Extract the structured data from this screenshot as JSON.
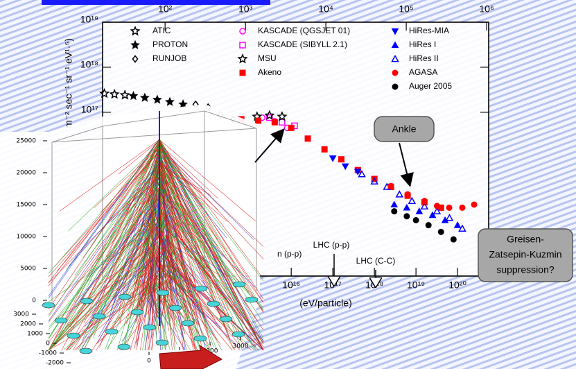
{
  "chart_data": {
    "type": "scatter",
    "x_log": true,
    "y_log": true,
    "xlim": [
      290000000000.0,
      5.6e+20
    ],
    "xticks": [
      {
        "value": 1e+16,
        "label": "10¹⁶"
      },
      {
        "value": 1e+17,
        "label": "10¹⁷"
      },
      {
        "value": 1e+18,
        "label": "10¹⁸"
      },
      {
        "value": 1e+19,
        "label": "10¹⁹"
      },
      {
        "value": 1e+20,
        "label": "10²⁰"
      }
    ],
    "x2lim": [
      16.7,
      1060000.0
    ],
    "x2ticks": [
      {
        "value": 100,
        "label": "10²"
      },
      {
        "value": 1000,
        "label": "10³"
      },
      {
        "value": 10000,
        "label": "10⁴"
      },
      {
        "value": 100000,
        "label": "10⁵"
      },
      {
        "value": 1000000,
        "label": "10⁶"
      }
    ],
    "ylim": [
      23000000000000.0,
      1e+19
    ],
    "yticks": [
      {
        "value": 1e+17,
        "label": "10¹⁷"
      },
      {
        "value": 1e+18,
        "label": "10¹⁸"
      },
      {
        "value": 1e+19,
        "label": "10¹⁹"
      }
    ],
    "x_label": "(eV/particle)",
    "y_label": "m⁻² sec⁻¹ sr⁻¹ eV¹·⁵)",
    "series": [
      {
        "name": "ATIC",
        "marker": "star-open",
        "color": "#000000",
        "x": [
          320000000000.0,
          560000000000.0,
          1000000000000.0
        ],
        "values": [
          2.6e+17,
          2.5e+17,
          2.4e+17
        ]
      },
      {
        "name": "PROTON",
        "marker": "star",
        "color": "#000000",
        "x": [
          1600000000000.0,
          3000000000000.0,
          6000000000000.0,
          12000000000000.0,
          25000000000000.0
        ],
        "values": [
          2.3e+17,
          2.1e+17,
          1.9e+17,
          1.7e+17,
          1.5e+17
        ]
      },
      {
        "name": "RUNJOB",
        "marker": "diamond-open",
        "color": "#000000",
        "x": [
          50000000000000.0,
          100000000000000.0,
          200000000000000.0,
          400000000000000.0
        ],
        "values": [
          1.5e+17,
          1.3e+17,
          8.9e+16,
          7e+16
        ]
      },
      {
        "name": "KASCADE (QGSJET 01)",
        "marker": "circle-open",
        "color": "#ff00ff",
        "x": [
          2000000000000000.0,
          4000000000000000.0,
          8000000000000000.0
        ],
        "values": [
          7.6e+16,
          6.3e+16,
          4.5e+16
        ]
      },
      {
        "name": "KASCADE (SIBYLL 2.1)",
        "marker": "square-open",
        "color": "#ff00ff",
        "x": [
          3000000000000000.0,
          6000000000000000.0,
          1.2e+16
        ],
        "values": [
          7.6e+16,
          6e+16,
          5e+16
        ]
      },
      {
        "name": "MSU",
        "marker": "star-open",
        "color": "#000000",
        "x": [
          1500000000000000.0,
          3000000000000000.0,
          6000000000000000.0
        ],
        "values": [
          8e+16,
          8.5e+16,
          8e+16
        ]
      },
      {
        "name": "Akeno",
        "marker": "square",
        "color": "#ff0000",
        "x": [
          630000000000000.0,
          1600000000000000.0,
          4000000000000000.0,
          1e+16,
          2.5e+16,
          6.3e+16,
          1.6e+17,
          4e+17,
          1e+18,
          2.5e+18,
          6.3e+18,
          1.6e+19,
          4e+19
        ],
        "values": [
          7e+16,
          6.5e+16,
          6e+16,
          4.5e+16,
          2.6e+16,
          1.5e+16,
          9000000000000000.0,
          5200000000000000.0,
          3300000000000000.0,
          2200000000000000.0,
          1400000000000000.0,
          1000000000000000.0,
          760000000000000.0
        ]
      },
      {
        "name": "HiRes-MIA",
        "marker": "triangle-down",
        "color": "#0000ff",
        "x": [
          1e+17,
          2e+17,
          4e+17
        ],
        "values": [
          9500000000000000.0,
          6300000000000000.0,
          4800000000000000.0
        ]
      },
      {
        "name": "HiRes I",
        "marker": "triangle-up",
        "color": "#0000ff",
        "x": [
          3e+18,
          6e+18,
          1.2e+19,
          2.5e+19,
          5e+19,
          1e+20
        ],
        "values": [
          890000000000000.0,
          760000000000000.0,
          630000000000000.0,
          520000000000000.0,
          400000000000000.0,
          310000000000000.0
        ]
      },
      {
        "name": "HiRes II",
        "marker": "triangle-up-open",
        "color": "#0000ff",
        "x": [
          5e+17,
          1e+18,
          2e+18,
          4e+18,
          8e+18,
          1.6e+19,
          3.2e+19,
          6.4e+19,
          1.3e+20
        ],
        "values": [
          4200000000000000.0,
          2900000000000000.0,
          2200000000000000.0,
          1500000000000000.0,
          1070000000000000.0,
          810000000000000.0,
          630000000000000.0,
          450000000000000.0,
          260000000000000.0
        ]
      },
      {
        "name": "AGASA",
        "marker": "circle",
        "color": "#ff0000",
        "x": [
          2.5e+18,
          6.3e+18,
          1.6e+19,
          3.2e+19,
          6.3e+19,
          1.3e+20,
          2.5e+20
        ],
        "values": [
          2300000000000000.0,
          1500000000000000.0,
          1070000000000000.0,
          830000000000000.0,
          760000000000000.0,
          760000000000000.0,
          890000000000000.0
        ]
      },
      {
        "name": "Auger 2005",
        "marker": "circle",
        "color": "#000000",
        "x": [
          3e+18,
          6e+18,
          1e+19,
          2e+19,
          4e+19,
          8e+19
        ],
        "values": [
          630000000000000.0,
          490000000000000.0,
          400000000000000.0,
          310000000000000.0,
          220000000000000.0,
          150000000000000.0
        ]
      }
    ],
    "annotations": {
      "ankle": "Ankle",
      "gzk": [
        "Greisen-",
        "Zatsepin-Kuzmin",
        "suppression?"
      ],
      "lhc_pp": "LHC (p-p)",
      "lhc_cc": "LHC (C-C)",
      "tevatron": "n (p-p)"
    }
  },
  "inset": {
    "zticks": [
      0,
      5000,
      10000,
      15000,
      20000,
      25000
    ],
    "yticks": [
      3000,
      2000,
      1000,
      0,
      -1000,
      -2000
    ],
    "xticks": [
      0,
      1000,
      2000,
      3000
    ]
  }
}
